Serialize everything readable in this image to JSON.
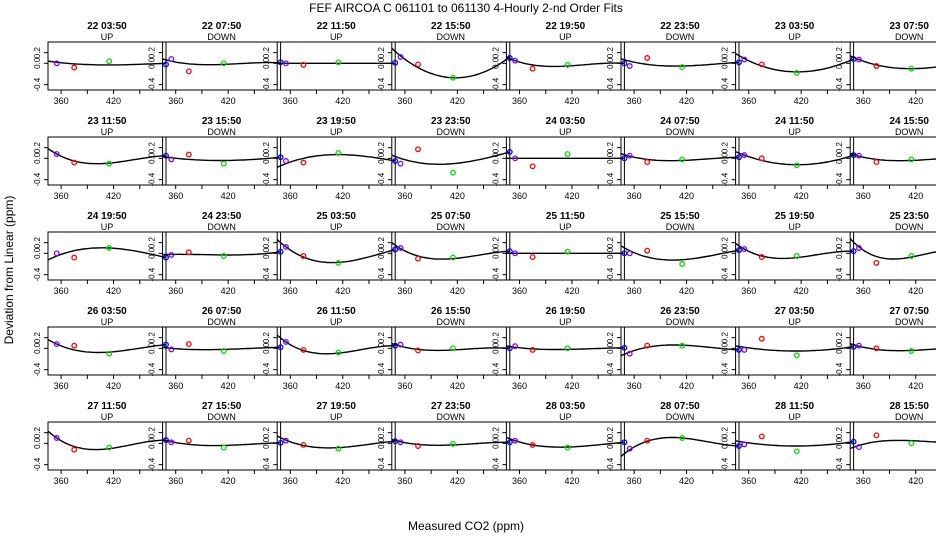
{
  "title": "FEF   AIRCOA C   061101 to 061130   4-Hourly 2-nd Order Fits",
  "xlabel": "Measured CO2 (ppm)",
  "ylabel": "Deviation from Linear (ppm)",
  "colors": {
    "pt0": "#7b00ff",
    "pt1": "#ff0000",
    "pt2": "#00dd00",
    "pt3": "#0000ff",
    "curve": "#000000",
    "frame": "#000000"
  },
  "chart_data": {
    "type": "scatter",
    "layout": "5x8 panel grid",
    "xlim": [
      345,
      480
    ],
    "ylim": [
      -0.5,
      0.4
    ],
    "x_ticks": [
      "360",
      "420"
    ],
    "y_ticks": [
      "-0.4",
      "0.0",
      "0.2"
    ],
    "x_positions": [
      355,
      375,
      415,
      480
    ],
    "panels": [
      {
        "time": "22 03:50",
        "dir": "UP",
        "y": [
          0.0,
          -0.08,
          0.04,
          -0.02
        ],
        "fit": [
          0.02,
          -0.01,
          -0.03,
          0.0
        ]
      },
      {
        "time": "22 07:50",
        "dir": "DOWN",
        "y": [
          0.08,
          -0.15,
          0.0,
          0.02
        ],
        "fit": [
          0.04,
          -0.01,
          -0.02,
          0.01
        ]
      },
      {
        "time": "22 11:50",
        "dir": "UP",
        "y": [
          0.0,
          -0.03,
          0.02,
          0.01
        ],
        "fit": [
          0.0,
          0.0,
          0.0,
          0.0
        ]
      },
      {
        "time": "22 15:50",
        "dir": "DOWN",
        "y": [
          0.12,
          -0.02,
          -0.27,
          0.1
        ],
        "fit": [
          0.14,
          -0.08,
          -0.27,
          0.12
        ]
      },
      {
        "time": "22 19:50",
        "dir": "UP",
        "y": [
          0.05,
          -0.1,
          -0.03,
          0.0
        ],
        "fit": [
          0.05,
          -0.03,
          -0.05,
          0.0
        ]
      },
      {
        "time": "22 23:50",
        "dir": "DOWN",
        "y": [
          -0.05,
          0.1,
          -0.07,
          0.02
        ],
        "fit": [
          0.04,
          -0.02,
          -0.05,
          0.02
        ]
      },
      {
        "time": "23 03:50",
        "dir": "UP",
        "y": [
          0.07,
          -0.02,
          -0.18,
          0.08
        ],
        "fit": [
          0.09,
          -0.05,
          -0.16,
          0.08
        ]
      },
      {
        "time": "23 07:50",
        "dir": "DOWN",
        "y": [
          0.07,
          -0.05,
          -0.1,
          0.03
        ],
        "fit": [
          0.07,
          -0.03,
          -0.1,
          0.03
        ]
      },
      {
        "time": "23 11:50",
        "dir": "UP",
        "y": [
          0.08,
          -0.08,
          -0.1,
          0.05
        ],
        "fit": [
          0.08,
          -0.05,
          -0.09,
          0.05
        ]
      },
      {
        "time": "23 15:50",
        "dir": "DOWN",
        "y": [
          -0.02,
          0.07,
          -0.1,
          0.02
        ],
        "fit": [
          0.01,
          -0.02,
          -0.04,
          0.02
        ]
      },
      {
        "time": "23 19:50",
        "dir": "UP",
        "y": [
          -0.05,
          -0.08,
          0.1,
          -0.05
        ],
        "fit": [
          -0.1,
          0.0,
          0.07,
          -0.05
        ]
      },
      {
        "time": "23 23:50",
        "dir": "DOWN",
        "y": [
          -0.1,
          0.17,
          -0.27,
          0.12
        ],
        "fit": [
          0.0,
          -0.08,
          -0.1,
          0.12
        ]
      },
      {
        "time": "24 03:50",
        "dir": "UP",
        "y": [
          0.0,
          -0.15,
          0.08,
          0.0
        ],
        "fit": [
          0.0,
          0.0,
          0.0,
          0.0
        ]
      },
      {
        "time": "24 07:50",
        "dir": "DOWN",
        "y": [
          0.05,
          -0.07,
          -0.02,
          0.02
        ],
        "fit": [
          0.04,
          -0.02,
          -0.04,
          0.02
        ]
      },
      {
        "time": "24 11:50",
        "dir": "UP",
        "y": [
          0.06,
          0.0,
          -0.13,
          0.06
        ],
        "fit": [
          0.06,
          -0.04,
          -0.12,
          0.06
        ]
      },
      {
        "time": "24 15:50",
        "dir": "DOWN",
        "y": [
          0.05,
          -0.07,
          -0.02,
          0.02
        ],
        "fit": [
          0.04,
          -0.02,
          -0.04,
          0.02
        ]
      },
      {
        "time": "24 19:50",
        "dir": "UP",
        "y": [
          0.0,
          -0.08,
          0.1,
          -0.08
        ],
        "fit": [
          -0.05,
          0.05,
          0.1,
          -0.08
        ]
      },
      {
        "time": "24 23:50",
        "dir": "DOWN",
        "y": [
          -0.03,
          0.02,
          -0.05,
          0.03
        ],
        "fit": [
          -0.02,
          -0.02,
          -0.03,
          0.03
        ]
      },
      {
        "time": "25 03:50",
        "dir": "UP",
        "y": [
          0.12,
          -0.05,
          -0.18,
          0.07
        ],
        "fit": [
          0.12,
          -0.07,
          -0.17,
          0.07
        ]
      },
      {
        "time": "25 07:50",
        "dir": "DOWN",
        "y": [
          0.1,
          -0.1,
          -0.08,
          0.04
        ],
        "fit": [
          0.09,
          -0.05,
          -0.1,
          0.04
        ]
      },
      {
        "time": "25 11:50",
        "dir": "UP",
        "y": [
          0.0,
          -0.07,
          0.03,
          0.0
        ],
        "fit": [
          0.0,
          0.0,
          0.0,
          0.0
        ]
      },
      {
        "time": "25 15:50",
        "dir": "DOWN",
        "y": [
          0.0,
          0.05,
          -0.2,
          0.06
        ],
        "fit": [
          0.05,
          -0.07,
          -0.12,
          0.06
        ]
      },
      {
        "time": "25 19:50",
        "dir": "UP",
        "y": [
          0.08,
          -0.07,
          -0.05,
          0.04
        ],
        "fit": [
          0.08,
          -0.05,
          -0.08,
          0.04
        ]
      },
      {
        "time": "25 23:50",
        "dir": "DOWN",
        "y": [
          0.1,
          -0.18,
          -0.05,
          0.02
        ],
        "fit": [
          0.12,
          -0.06,
          -0.07,
          0.02
        ]
      },
      {
        "time": "26 03:50",
        "dir": "UP",
        "y": [
          0.08,
          0.05,
          -0.1,
          0.07
        ],
        "fit": [
          0.08,
          -0.03,
          -0.07,
          0.07
        ]
      },
      {
        "time": "26 07:50",
        "dir": "DOWN",
        "y": [
          -0.02,
          0.08,
          -0.05,
          0.02
        ],
        "fit": [
          0.0,
          -0.02,
          -0.02,
          0.02
        ]
      },
      {
        "time": "26 11:50",
        "dir": "UP",
        "y": [
          0.12,
          -0.03,
          -0.08,
          0.05
        ],
        "fit": [
          0.12,
          -0.04,
          -0.09,
          0.05
        ]
      },
      {
        "time": "26 15:50",
        "dir": "DOWN",
        "y": [
          0.07,
          -0.04,
          0.0,
          0.0
        ],
        "fit": [
          0.04,
          -0.02,
          -0.03,
          0.0
        ]
      },
      {
        "time": "26 19:50",
        "dir": "UP",
        "y": [
          0.04,
          -0.03,
          0.0,
          0.01
        ],
        "fit": [
          0.02,
          -0.01,
          -0.02,
          0.01
        ]
      },
      {
        "time": "26 23:50",
        "dir": "DOWN",
        "y": [
          -0.1,
          0.05,
          0.05,
          -0.03
        ],
        "fit": [
          -0.07,
          0.02,
          0.06,
          -0.03
        ]
      },
      {
        "time": "27 03:50",
        "dir": "UP",
        "y": [
          -0.03,
          0.18,
          -0.13,
          0.03
        ],
        "fit": [
          0.02,
          -0.02,
          -0.05,
          0.03
        ]
      },
      {
        "time": "27 07:50",
        "dir": "DOWN",
        "y": [
          0.05,
          0.0,
          -0.05,
          0.02
        ],
        "fit": [
          0.04,
          -0.02,
          -0.04,
          0.02
        ]
      },
      {
        "time": "27 11:50",
        "dir": "UP",
        "y": [
          0.1,
          -0.12,
          -0.08,
          0.06
        ],
        "fit": [
          0.1,
          -0.06,
          -0.1,
          0.06
        ]
      },
      {
        "time": "27 15:50",
        "dir": "DOWN",
        "y": [
          0.02,
          0.05,
          -0.08,
          0.01
        ],
        "fit": [
          0.03,
          -0.02,
          -0.04,
          0.01
        ]
      },
      {
        "time": "27 19:50",
        "dir": "UP",
        "y": [
          0.05,
          -0.03,
          -0.1,
          0.04
        ],
        "fit": [
          0.06,
          -0.04,
          -0.08,
          0.04
        ]
      },
      {
        "time": "27 23:50",
        "dir": "DOWN",
        "y": [
          0.02,
          -0.05,
          -0.01,
          0.02
        ],
        "fit": [
          0.03,
          -0.02,
          -0.03,
          0.02
        ]
      },
      {
        "time": "28 03:50",
        "dir": "UP",
        "y": [
          0.05,
          -0.03,
          -0.08,
          0.02
        ],
        "fit": [
          0.05,
          -0.03,
          -0.07,
          0.02
        ]
      },
      {
        "time": "28 07:50",
        "dir": "DOWN",
        "y": [
          -0.1,
          0.05,
          0.1,
          -0.05
        ],
        "fit": [
          -0.12,
          0.04,
          0.1,
          -0.05
        ]
      },
      {
        "time": "28 11:50",
        "dir": "UP",
        "y": [
          -0.02,
          0.13,
          -0.15,
          0.03
        ],
        "fit": [
          0.02,
          -0.02,
          -0.05,
          0.03
        ]
      },
      {
        "time": "28 15:50",
        "dir": "DOWN",
        "y": [
          -0.07,
          0.15,
          0.0,
          0.03
        ],
        "fit": [
          -0.04,
          0.03,
          0.05,
          0.03
        ]
      }
    ]
  }
}
